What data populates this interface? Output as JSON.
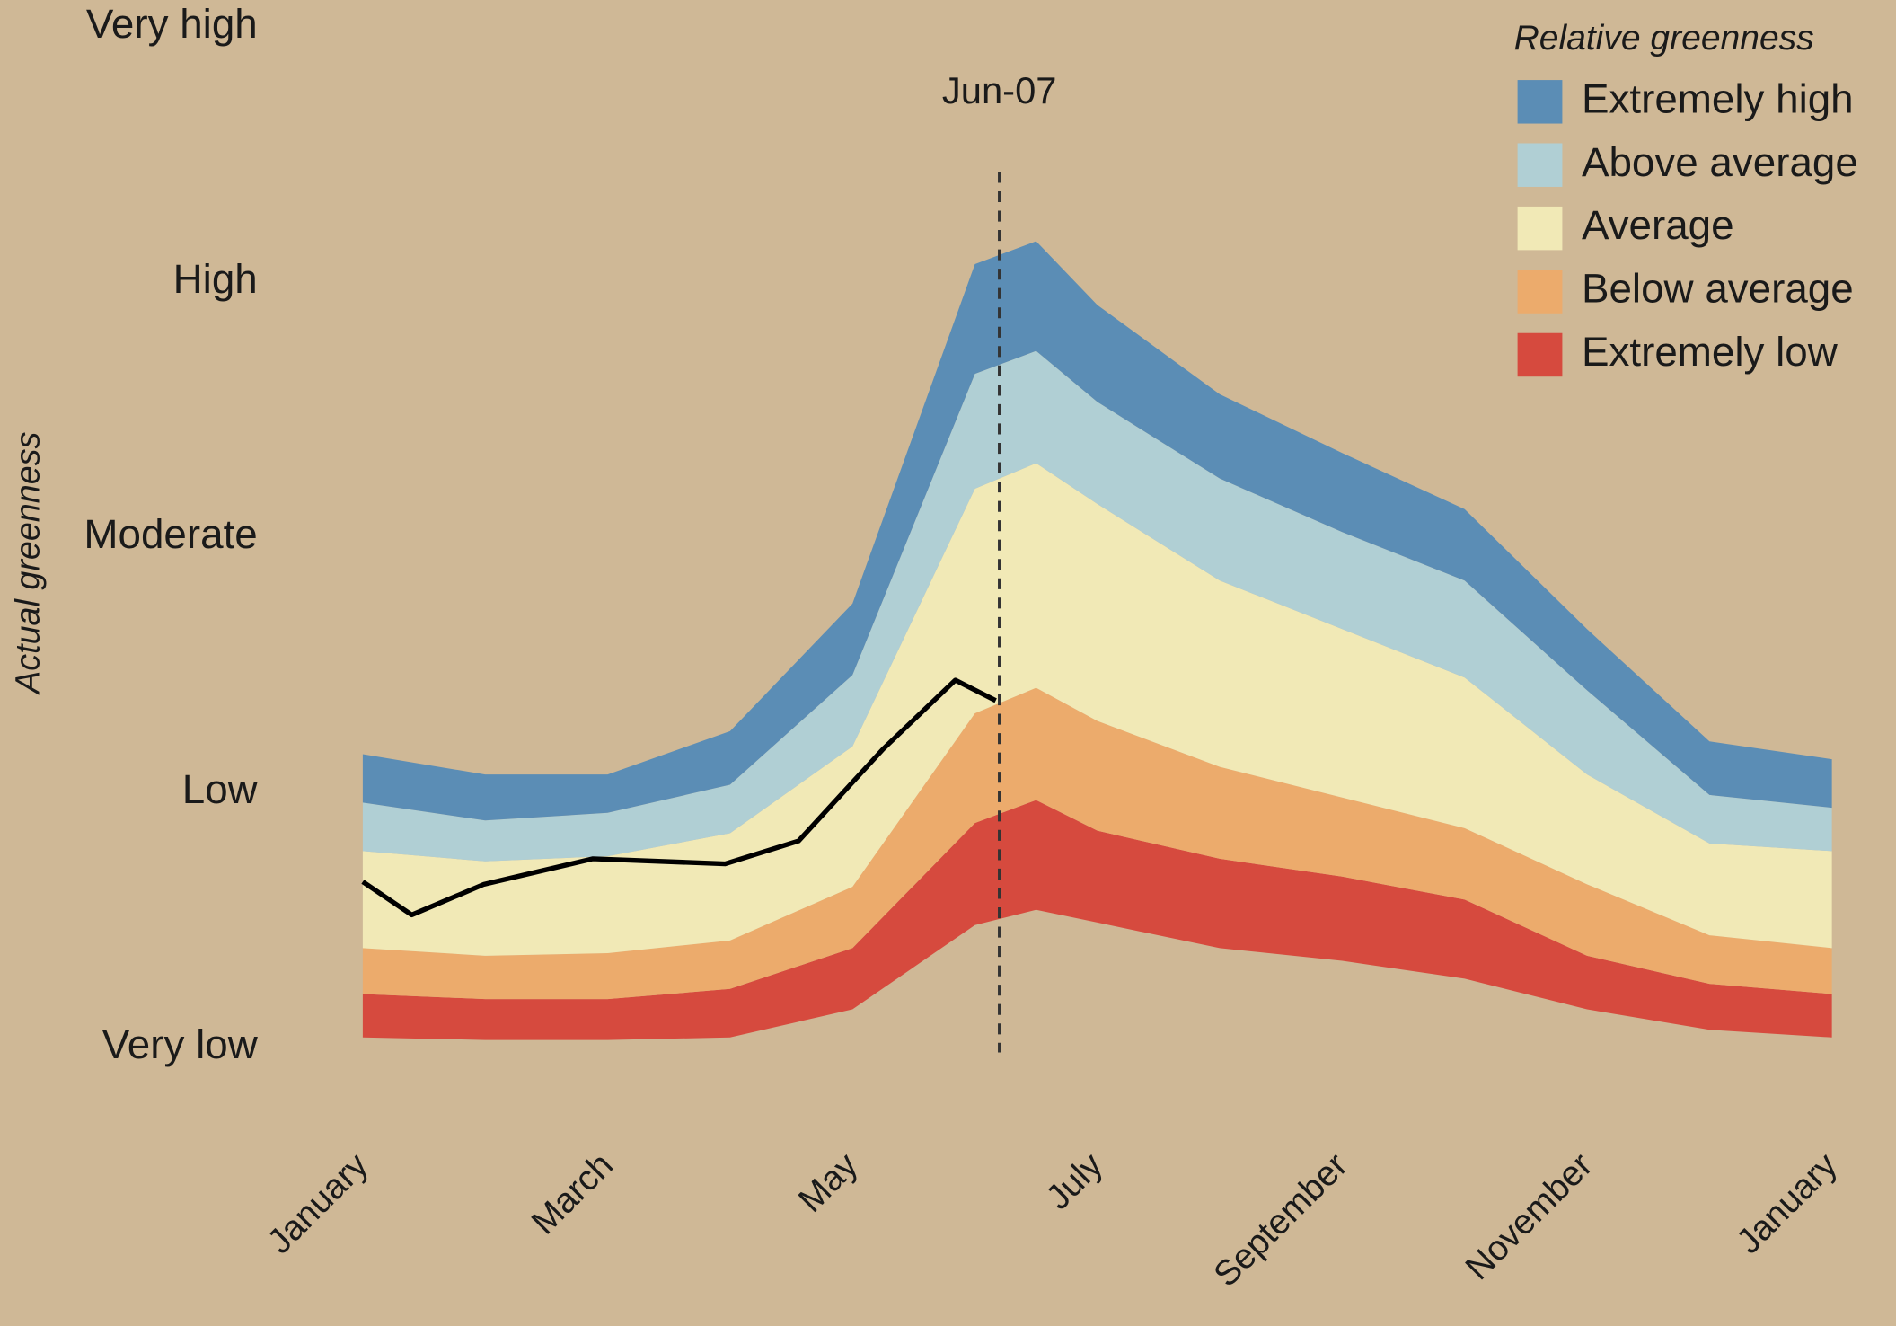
{
  "chart_data": {
    "type": "stacked_area",
    "y_label": "Actual greenness",
    "x": [
      0,
      1,
      2,
      3,
      4,
      5,
      5.5,
      6,
      7,
      8,
      9,
      10,
      11,
      12
    ],
    "xlim": [
      0,
      12
    ],
    "xticks": [
      {
        "value": 0,
        "label": "January"
      },
      {
        "value": 2,
        "label": "March"
      },
      {
        "value": 4,
        "label": "May"
      },
      {
        "value": 6,
        "label": "July"
      },
      {
        "value": 8,
        "label": "September"
      },
      {
        "value": 10,
        "label": "November"
      },
      {
        "value": 12,
        "label": "January"
      }
    ],
    "ylim": [
      0,
      4
    ],
    "yticks": [
      {
        "value": 0,
        "label": "Very low"
      },
      {
        "value": 1,
        "label": "Low"
      },
      {
        "value": 2,
        "label": "Moderate"
      },
      {
        "value": 3,
        "label": "High"
      },
      {
        "value": 4,
        "label": "Very high"
      }
    ],
    "base": [
      0.04,
      0.03,
      0.03,
      0.04,
      0.15,
      0.48,
      0.54,
      0.49,
      0.39,
      0.34,
      0.27,
      0.15,
      0.07,
      0.04
    ],
    "legend_title": "Relative greenness",
    "series": [
      {
        "name": "Extremely low",
        "color": "#d64a3e",
        "values": [
          0.17,
          0.16,
          0.16,
          0.19,
          0.24,
          0.4,
          0.43,
          0.36,
          0.35,
          0.33,
          0.31,
          0.21,
          0.18,
          0.17
        ]
      },
      {
        "name": "Below average",
        "color": "#ecab6c",
        "values": [
          0.18,
          0.17,
          0.18,
          0.19,
          0.24,
          0.43,
          0.44,
          0.43,
          0.36,
          0.31,
          0.28,
          0.28,
          0.19,
          0.18
        ]
      },
      {
        "name": "Average",
        "color": "#f1e9b6",
        "values": [
          0.38,
          0.37,
          0.38,
          0.42,
          0.55,
          0.88,
          0.88,
          0.85,
          0.73,
          0.66,
          0.59,
          0.43,
          0.36,
          0.38
        ]
      },
      {
        "name": "Above average",
        "color": "#b0cfd4",
        "values": [
          0.19,
          0.16,
          0.17,
          0.19,
          0.28,
          0.45,
          0.44,
          0.4,
          0.4,
          0.38,
          0.38,
          0.33,
          0.19,
          0.17
        ]
      },
      {
        "name": "Extremely high",
        "color": "#5b8db5",
        "values": [
          0.19,
          0.18,
          0.15,
          0.21,
          0.28,
          0.43,
          0.43,
          0.38,
          0.33,
          0.31,
          0.28,
          0.24,
          0.21,
          0.19
        ]
      }
    ],
    "line": {
      "color": "#000000",
      "x": [
        0,
        0.4,
        0.99,
        1.88,
        2.96,
        3.56,
        4.25,
        4.84,
        5.17
      ],
      "values": [
        0.65,
        0.52,
        0.64,
        0.74,
        0.72,
        0.81,
        1.17,
        1.44,
        1.36
      ]
    },
    "vline": {
      "x": 5.2,
      "label": "Jun-07"
    }
  }
}
